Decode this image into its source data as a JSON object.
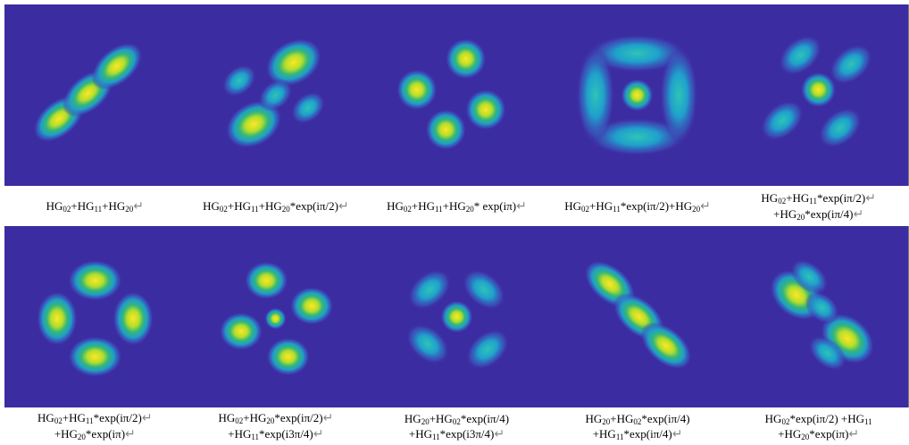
{
  "panels": [
    {
      "lines": [
        {
          "parts": [
            "HG",
            "02",
            "+HG",
            "11",
            "+HG",
            "20"
          ],
          "end": "↵"
        }
      ]
    },
    {
      "lines": [
        {
          "parts": [
            "HG",
            "02",
            "+HG",
            "11",
            "+HG",
            "20",
            "*exp(iπ/2)"
          ],
          "end": "↵"
        }
      ]
    },
    {
      "lines": [
        {
          "parts": [
            "HG",
            "02",
            "+HG",
            "11",
            "+HG",
            "20",
            "* exp(iπ)"
          ],
          "end": "↵"
        }
      ]
    },
    {
      "lines": [
        {
          "parts": [
            "HG",
            "02",
            "+HG",
            "11",
            "*exp(iπ/2)+HG",
            "20"
          ],
          "end": "↵"
        }
      ]
    },
    {
      "lines": [
        {
          "parts": [
            "HG",
            "02",
            "+HG",
            "11",
            "*exp(iπ/2)"
          ],
          "end": "↵"
        },
        {
          "parts": [
            "+HG",
            "20",
            "*exp(iπ/4)"
          ],
          "end": "↵"
        }
      ]
    },
    {
      "lines": [
        {
          "parts": [
            "HG",
            "02",
            "+HG",
            "11",
            "*exp(iπ/2)"
          ],
          "end": "↵"
        },
        {
          "parts": [
            "+HG",
            "20",
            "*exp(iπ)"
          ],
          "end": "↵"
        }
      ]
    },
    {
      "lines": [
        {
          "parts": [
            "HG",
            "02",
            "+HG",
            "20",
            "*exp(iπ/2)"
          ],
          "end": "↵"
        },
        {
          "parts": [
            "+HG",
            "11",
            "*exp(i3π/4)"
          ],
          "end": "↵"
        }
      ]
    },
    {
      "lines": [
        {
          "parts": [
            "HG",
            "20",
            "+HG",
            "02",
            "*exp(iπ/4)"
          ]
        },
        {
          "parts": [
            "+HG",
            "11",
            "*exp(i3π/4)"
          ],
          "end": "↵"
        }
      ]
    },
    {
      "lines": [
        {
          "parts": [
            "HG",
            "20",
            "+HG",
            "02",
            "*exp(iπ/4)"
          ]
        },
        {
          "parts": [
            "+HG",
            "11",
            "*exp(iπ/4)"
          ],
          "end": "↵"
        }
      ]
    },
    {
      "lines": [
        {
          "parts": [
            "HG",
            "02",
            "*exp(iπ/2) +HG",
            "11"
          ]
        },
        {
          "parts": [
            "+HG",
            "20",
            "*exp(iπ)"
          ],
          "end": "↵"
        }
      ]
    }
  ]
}
